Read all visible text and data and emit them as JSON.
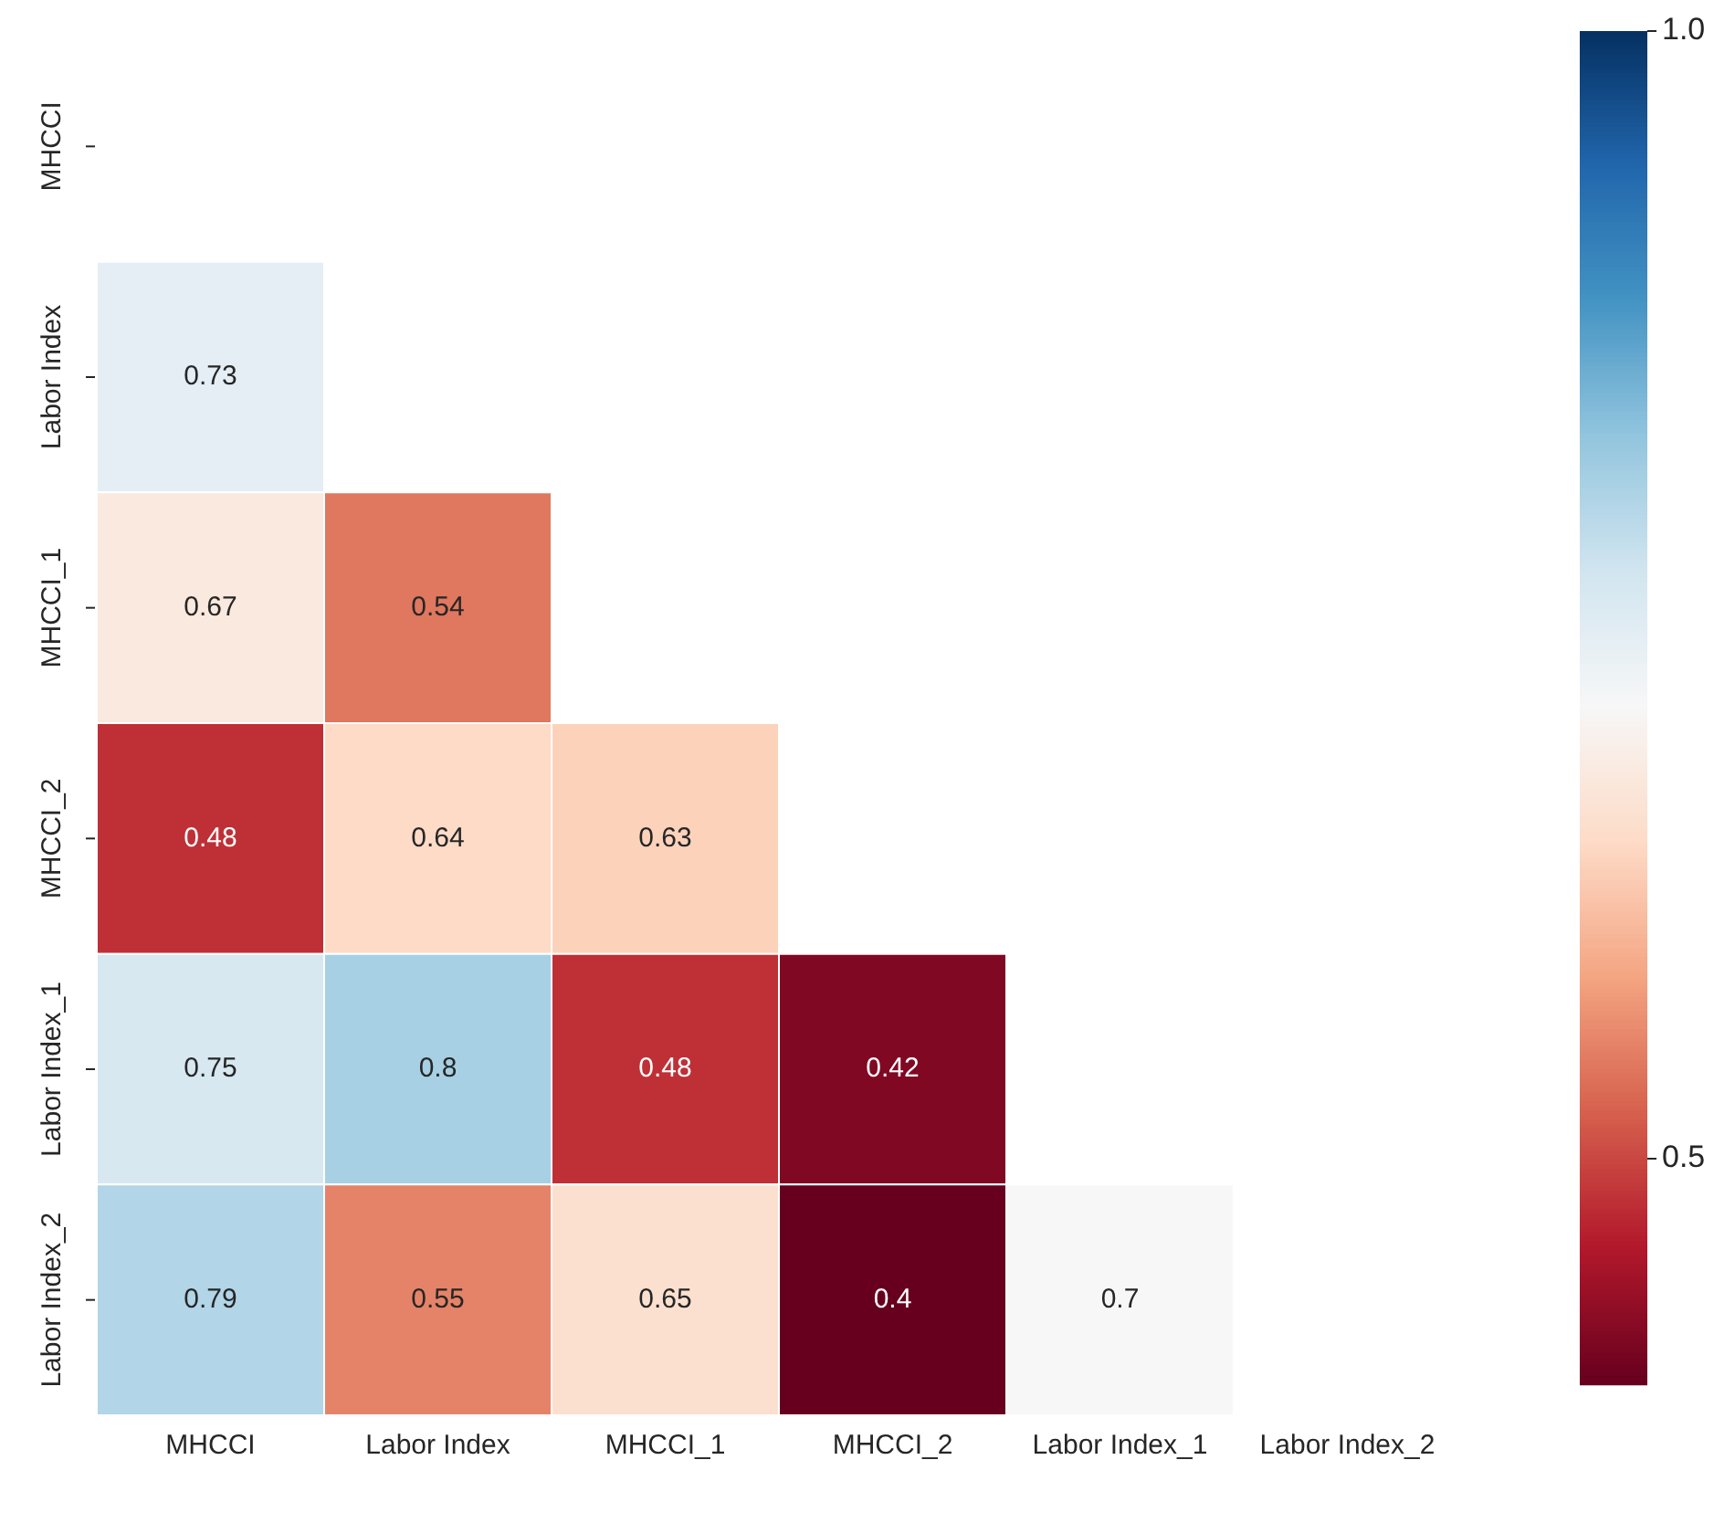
{
  "chart_data": {
    "type": "heatmap",
    "categories": [
      "MHCCI",
      "Labor Index",
      "MHCCI_1",
      "MHCCI_2",
      "Labor Index_1",
      "Labor Index_2"
    ],
    "y_categories": [
      "MHCCI",
      "Labor Index",
      "MHCCI_1",
      "MHCCI_2",
      "Labor Index_1",
      "Labor Index_2"
    ],
    "cells": [
      [
        null,
        null,
        null,
        null,
        null,
        null
      ],
      [
        0.73,
        null,
        null,
        null,
        null,
        null
      ],
      [
        0.67,
        0.54,
        null,
        null,
        null,
        null
      ],
      [
        0.48,
        0.64,
        0.63,
        null,
        null,
        null
      ],
      [
        0.75,
        0.8,
        0.48,
        0.42,
        null,
        null
      ],
      [
        0.79,
        0.55,
        0.65,
        0.4,
        0.7,
        null
      ]
    ],
    "data_labels": true,
    "clim": [
      0.4,
      1.0
    ],
    "cticks": [
      {
        "value": 0.5,
        "label": "0.5"
      },
      {
        "value": 1.0,
        "label": "1.0"
      }
    ]
  }
}
